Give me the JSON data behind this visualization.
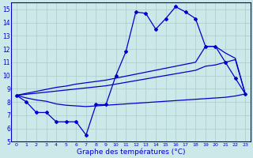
{
  "hours": [
    0,
    1,
    2,
    3,
    4,
    5,
    6,
    7,
    8,
    9,
    10,
    11,
    12,
    13,
    14,
    15,
    16,
    17,
    18,
    19,
    20,
    21,
    22,
    23
  ],
  "temp_actual": [
    8.5,
    8.0,
    7.2,
    7.2,
    6.5,
    6.5,
    6.5,
    5.5,
    7.8,
    7.8,
    10.0,
    11.8,
    14.8,
    14.7,
    13.5,
    14.3,
    15.2,
    14.8,
    14.3,
    12.2,
    12.2,
    11.0,
    9.8,
    8.6
  ],
  "temp_trend_upper": [
    8.5,
    8.65,
    8.8,
    8.95,
    9.1,
    9.2,
    9.35,
    9.45,
    9.55,
    9.65,
    9.8,
    9.95,
    10.1,
    10.25,
    10.4,
    10.55,
    10.7,
    10.85,
    11.0,
    12.2,
    12.2,
    11.7,
    11.3,
    8.6
  ],
  "temp_trend_lower": [
    8.5,
    8.58,
    8.66,
    8.74,
    8.82,
    8.9,
    8.98,
    9.06,
    9.14,
    9.22,
    9.35,
    9.48,
    9.61,
    9.74,
    9.87,
    10.0,
    10.13,
    10.26,
    10.39,
    10.7,
    10.8,
    11.0,
    11.2,
    8.6
  ],
  "temp_bottom": [
    8.5,
    8.3,
    8.15,
    8.05,
    7.85,
    7.75,
    7.7,
    7.65,
    7.7,
    7.75,
    7.8,
    7.85,
    7.9,
    7.95,
    8.0,
    8.05,
    8.1,
    8.15,
    8.2,
    8.25,
    8.3,
    8.35,
    8.45,
    8.6
  ],
  "ylim": [
    5,
    15.5
  ],
  "yticks": [
    5,
    6,
    7,
    8,
    9,
    10,
    11,
    12,
    13,
    14,
    15
  ],
  "xlabel": "Graphe des températures (°C)",
  "line_color": "#0000cc",
  "bg_color": "#cce8e8",
  "grid_color": "#aacccc"
}
